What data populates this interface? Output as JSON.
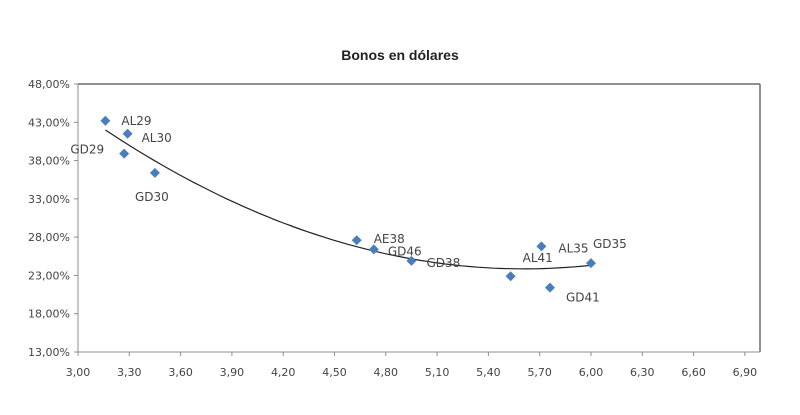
{
  "chart_data": {
    "type": "scatter",
    "title": "Bonos  en dólares",
    "xlabel": "",
    "ylabel": "",
    "xlim": [
      3.0,
      6.9
    ],
    "ylim": [
      0.13,
      0.48
    ],
    "x_ticks": [
      "3,00",
      "3,30",
      "3,60",
      "3,90",
      "4,20",
      "4,50",
      "4,80",
      "5,10",
      "5,40",
      "5,70",
      "6,00",
      "6,30",
      "6,60",
      "6,90"
    ],
    "y_ticks": [
      "48,00%",
      "43,00%",
      "38,00%",
      "33,00%",
      "28,00%",
      "23,00%",
      "18,00%",
      "13,00%"
    ],
    "grid": false,
    "legend": null,
    "marker_color": "#4a7ebb",
    "trendline": {
      "type": "polynomial",
      "order": 2,
      "color": "#222222",
      "x_range": [
        3.16,
        6.0
      ]
    },
    "points": [
      {
        "label": "AL29",
        "x": 3.16,
        "y": 0.432
      },
      {
        "label": "AL30",
        "x": 3.29,
        "y": 0.415
      },
      {
        "label": "GD29",
        "x": 3.27,
        "y": 0.389
      },
      {
        "label": "GD30",
        "x": 3.45,
        "y": 0.364
      },
      {
        "label": "AE38",
        "x": 4.63,
        "y": 0.276
      },
      {
        "label": "GD46",
        "x": 4.73,
        "y": 0.264
      },
      {
        "label": "GD38",
        "x": 4.95,
        "y": 0.249
      },
      {
        "label": "AL41",
        "x": 5.53,
        "y": 0.229
      },
      {
        "label": "AL35",
        "x": 5.71,
        "y": 0.268
      },
      {
        "label": "GD41",
        "x": 5.76,
        "y": 0.214
      },
      {
        "label": "GD35",
        "x": 6.0,
        "y": 0.246
      }
    ]
  }
}
